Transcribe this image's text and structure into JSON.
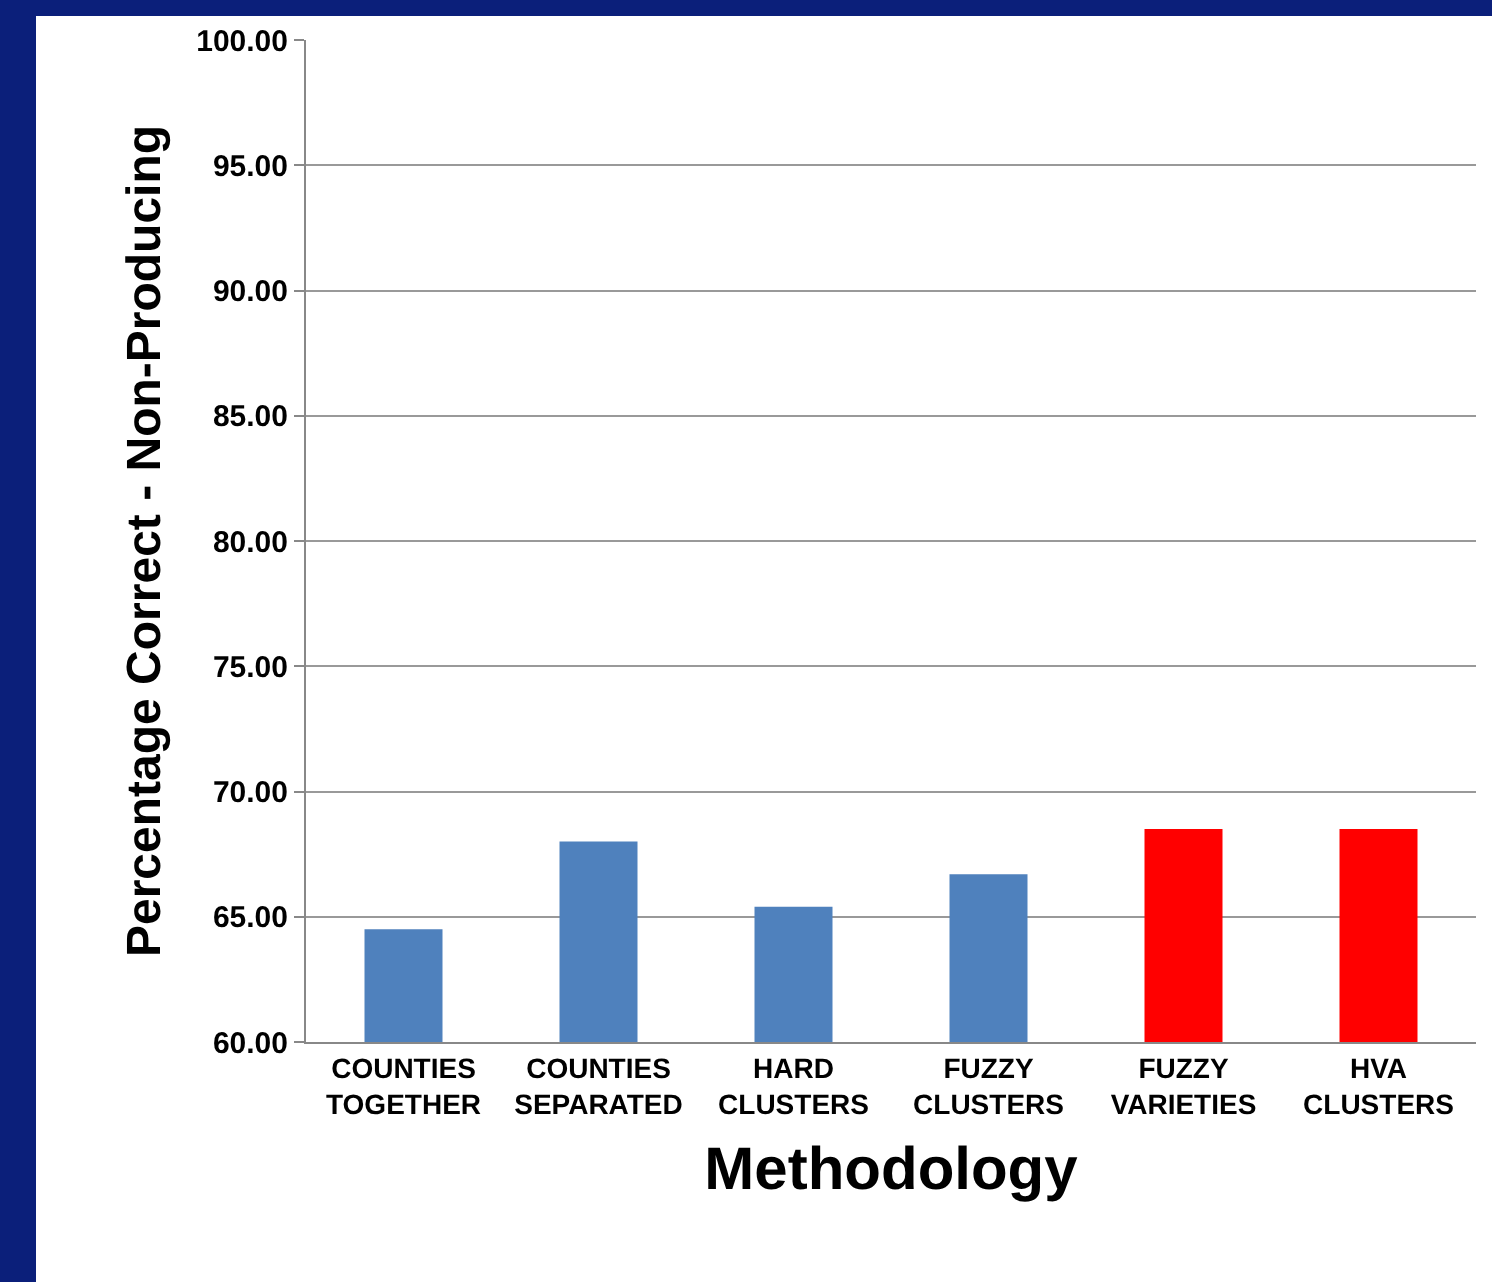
{
  "chart_data": {
    "type": "bar",
    "xlabel": "Methodology",
    "ylabel": "Percentage Correct - Non-Producing",
    "categories": [
      "COUNTIES\nTOGETHER",
      "COUNTIES\nSEPARATED",
      "HARD\nCLUSTERS",
      "FUZZY\nCLUSTERS",
      "FUZZY\nVARIETIES",
      "HVA\nCLUSTERS"
    ],
    "values": [
      64.5,
      68.0,
      65.4,
      66.7,
      68.5,
      68.5
    ],
    "colors": [
      "#4f81bd",
      "#4f81bd",
      "#4f81bd",
      "#4f81bd",
      "#ff0000",
      "#ff0000"
    ],
    "ylim": [
      60,
      100
    ],
    "yticks": [
      {
        "value": 60,
        "label": "60.00"
      },
      {
        "value": 65,
        "label": "65.00"
      },
      {
        "value": 70,
        "label": "70.00"
      },
      {
        "value": 75,
        "label": "75.00"
      },
      {
        "value": 80,
        "label": "80.00"
      },
      {
        "value": 85,
        "label": "85.00"
      },
      {
        "value": 90,
        "label": "90.00"
      },
      {
        "value": 95,
        "label": "95.00"
      },
      {
        "value": 100,
        "label": "100.00"
      }
    ],
    "grid": "y"
  }
}
